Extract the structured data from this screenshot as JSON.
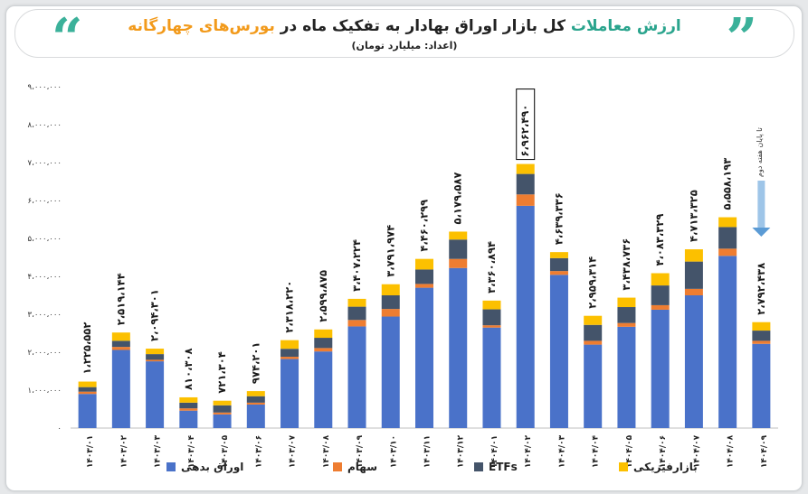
{
  "header": {
    "title_part1": "ارزش معاملات",
    "title_part2": "کل بازار اوراق بهادار به تفکیک ماه در",
    "title_part3": "بورس‌های چهارگانه",
    "subtitle": "(اعداد: میلیارد تومان)"
  },
  "colors": {
    "bonds": "#4a72c9",
    "stocks": "#ee7d31",
    "etfs": "#44546a",
    "physical": "#fcc000"
  },
  "chart_data": {
    "type": "bar",
    "stacked": true,
    "categories": [
      "۱۴۰۳/۰۱",
      "۱۴۰۳/۰۲",
      "۱۴۰۳/۰۳",
      "۱۴۰۳/۰۴",
      "۱۴۰۳/۰۵",
      "۱۴۰۳/۰۶",
      "۱۴۰۳/۰۷",
      "۱۴۰۳/۰۸",
      "۱۴۰۳/۰۹",
      "۱۴۰۳/۱۰",
      "۱۴۰۳/۱۱",
      "۱۴۰۳/۱۲",
      "۱۴۰۴/۰۱",
      "۱۴۰۴/۰۲",
      "۱۴۰۴/۰۳",
      "۱۴۰۴/۰۴",
      "۱۴۰۴/۰۵",
      "۱۴۰۴/۰۶",
      "۱۴۰۴/۰۷",
      "۱۴۰۴/۰۸",
      "۱۴۰۴/۰۹"
    ],
    "totals": [
      1225552,
      2519144,
      2094301,
      810308,
      721304,
      974201,
      2318220,
      2599875,
      3407224,
      3791974,
      4460299,
      5179587,
      3360894,
      6962490,
      4639336,
      2959314,
      3438736,
      4083329,
      4713325,
      5558193,
      2792438
    ],
    "total_labels": [
      "۱،۲۲۵،۵۵۲",
      "۲،۵۱۹،۱۴۴",
      "۲،۰۹۴،۳۰۱",
      "۸۱۰،۳۰۸",
      "۷۲۱،۳۰۴",
      "۹۷۴،۲۰۱",
      "۲،۳۱۸،۲۲۰",
      "۲،۵۹۹،۸۷۵",
      "۳،۴۰۷،۲۲۴",
      "۳،۷۹۱،۹۷۴",
      "۴،۴۶۰،۲۹۹",
      "۵،۱۷۹،۵۸۷",
      "۳،۳۶۰،۸۹۴",
      "۶،۹۶۲،۴۹۰",
      "۴،۶۳۹،۳۳۶",
      "۲،۹۵۹،۳۱۴",
      "۳،۴۳۸،۷۳۶",
      "۴،۰۸۳،۳۲۹",
      "۴،۷۱۳،۳۲۵",
      "۵،۵۵۸،۱۹۳",
      "۲،۷۹۲،۴۳۸"
    ],
    "highlight_index": 13,
    "series": [
      {
        "name": "اوراق بدهی",
        "key": "bonds",
        "values": [
          900000,
          2060000,
          1760000,
          460000,
          360000,
          620000,
          1820000,
          2020000,
          2680000,
          2940000,
          3700000,
          4220000,
          2650000,
          5860000,
          4040000,
          2200000,
          2670000,
          3120000,
          3500000,
          4540000,
          2220000
        ]
      },
      {
        "name": "سهام",
        "key": "stocks",
        "values": [
          60000,
          80000,
          40000,
          60000,
          50000,
          50000,
          60000,
          90000,
          170000,
          200000,
          100000,
          240000,
          60000,
          300000,
          100000,
          100000,
          100000,
          120000,
          170000,
          190000,
          80000
        ]
      },
      {
        "name": "ETFs",
        "key": "etfs",
        "values": [
          120000,
          160000,
          150000,
          150000,
          190000,
          170000,
          210000,
          270000,
          350000,
          360000,
          380000,
          510000,
          420000,
          540000,
          340000,
          420000,
          420000,
          520000,
          720000,
          570000,
          270000
        ]
      },
      {
        "name": "بازار فیزیکی",
        "key": "physical",
        "values": [
          145552,
          219144,
          144301,
          140308,
          121304,
          134201,
          228220,
          219875,
          207224,
          291974,
          280299,
          209587,
          230894,
          262490,
          159336,
          239314,
          248736,
          323329,
          323325,
          258193,
          222438
        ]
      }
    ],
    "y_ticks": [
      0,
      1000000,
      2000000,
      3000000,
      4000000,
      5000000,
      6000000,
      7000000,
      8000000,
      9000000
    ],
    "y_tick_labels": [
      "۰",
      "۱،۰۰۰،۰۰۰",
      "۲،۰۰۰،۰۰۰",
      "۳،۰۰۰،۰۰۰",
      "۴،۰۰۰،۰۰۰",
      "۵،۰۰۰،۰۰۰",
      "۶،۰۰۰،۰۰۰",
      "۷،۰۰۰،۰۰۰",
      "۸،۰۰۰،۰۰۰",
      "۹،۰۰۰،۰۰۰"
    ],
    "ylim": [
      0,
      9000000
    ],
    "annotation": "تا پایان هفته دوم",
    "legend_position": "bottom"
  },
  "legend": {
    "bonds": "اوراق بدهی",
    "stocks": "سهام",
    "etfs": "ETFs",
    "physical": "بازارفیزیکی"
  }
}
